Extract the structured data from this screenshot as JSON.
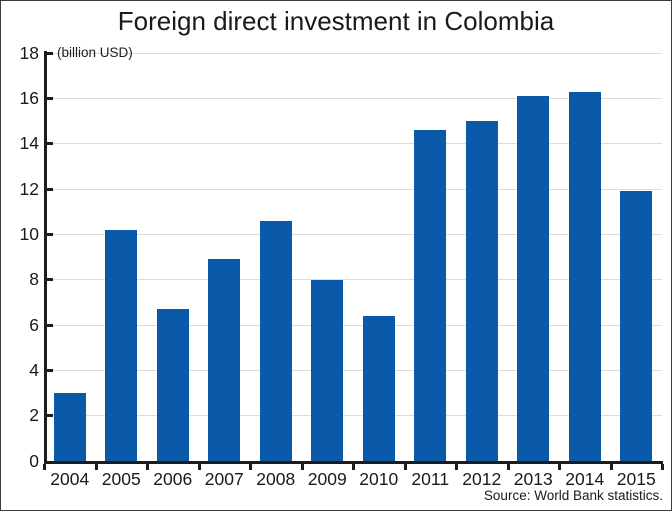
{
  "chart": {
    "title": "Foreign direct investment in Colombia",
    "unit_label": "(billion USD)",
    "source": "Source: World Bank statistics."
  },
  "chart_data": {
    "type": "bar",
    "title": "Foreign direct investment in Colombia",
    "unit_label": "(billion USD)",
    "categories": [
      "2004",
      "2005",
      "2006",
      "2007",
      "2008",
      "2009",
      "2010",
      "2011",
      "2012",
      "2013",
      "2014",
      "2015"
    ],
    "values": [
      3.0,
      10.2,
      6.7,
      8.9,
      10.6,
      8.0,
      6.4,
      14.6,
      15.0,
      16.1,
      16.3,
      11.9
    ],
    "xlabel": "",
    "ylabel": "billion USD",
    "ylim": [
      0,
      18
    ],
    "ytick_step": 2,
    "grid": true,
    "legend": false,
    "bar_color": "#0b5aa9",
    "gridline_color": "#dcdcdc",
    "axis_color": "#1c1c1c",
    "source": "Source: World Bank statistics."
  }
}
